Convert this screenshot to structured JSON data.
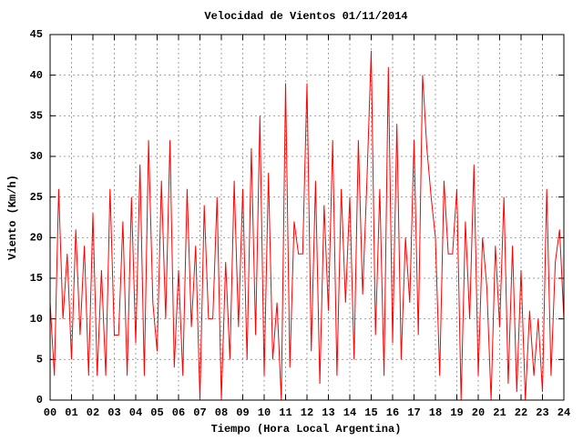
{
  "chart_data": {
    "type": "line",
    "title": "Velocidad de Vientos 01/11/2014",
    "xlabel": "Tiempo (Hora Local Argentina)",
    "ylabel": "Viento (Km/h)",
    "color": "#ff0000",
    "grid": true,
    "xlim": [
      0,
      24
    ],
    "ylim": [
      0,
      45
    ],
    "yticks": [
      0,
      5,
      10,
      15,
      20,
      25,
      30,
      35,
      40,
      45
    ],
    "xticks": [
      {
        "value": 0,
        "label": "00"
      },
      {
        "value": 1,
        "label": "01"
      },
      {
        "value": 2,
        "label": "02"
      },
      {
        "value": 3,
        "label": "03"
      },
      {
        "value": 4,
        "label": "04"
      },
      {
        "value": 5,
        "label": "05"
      },
      {
        "value": 6,
        "label": "06"
      },
      {
        "value": 7,
        "label": "07"
      },
      {
        "value": 8,
        "label": "08"
      },
      {
        "value": 9,
        "label": "09"
      },
      {
        "value": 10,
        "label": "10"
      },
      {
        "value": 11,
        "label": "11"
      },
      {
        "value": 12,
        "label": "12"
      },
      {
        "value": 13,
        "label": "13"
      },
      {
        "value": 14,
        "label": "14"
      },
      {
        "value": 15,
        "label": "15"
      },
      {
        "value": 16,
        "label": "16"
      },
      {
        "value": 17,
        "label": "17"
      },
      {
        "value": 18,
        "label": "18"
      },
      {
        "value": 19,
        "label": "19"
      },
      {
        "value": 20,
        "label": "20"
      },
      {
        "value": 21,
        "label": "21"
      },
      {
        "value": 22,
        "label": "22"
      },
      {
        "value": 23,
        "label": "23"
      },
      {
        "value": 24,
        "label": "24"
      }
    ],
    "x": [
      0,
      0.2,
      0.4,
      0.6,
      0.8,
      1,
      1.2,
      1.4,
      1.6,
      1.8,
      2,
      2.2,
      2.4,
      2.6,
      2.8,
      3,
      3.2,
      3.4,
      3.6,
      3.8,
      4,
      4.2,
      4.4,
      4.6,
      4.8,
      5,
      5.2,
      5.4,
      5.6,
      5.8,
      6,
      6.2,
      6.4,
      6.6,
      6.8,
      7,
      7.2,
      7.4,
      7.6,
      7.8,
      8,
      8.2,
      8.4,
      8.6,
      8.8,
      9,
      9.2,
      9.4,
      9.6,
      9.8,
      10,
      10.2,
      10.4,
      10.6,
      10.8,
      11,
      11.2,
      11.4,
      11.6,
      11.8,
      12,
      12.2,
      12.4,
      12.6,
      12.8,
      13,
      13.2,
      13.4,
      13.6,
      13.8,
      14,
      14.2,
      14.4,
      14.6,
      14.8,
      15,
      15.2,
      15.4,
      15.6,
      15.8,
      16,
      16.2,
      16.4,
      16.6,
      16.8,
      17,
      17.2,
      17.4,
      17.6,
      17.8,
      18,
      18.2,
      18.4,
      18.6,
      18.8,
      19,
      19.2,
      19.4,
      19.6,
      19.8,
      20,
      20.2,
      20.4,
      20.6,
      20.8,
      21,
      21.2,
      21.4,
      21.6,
      21.8,
      22,
      22.2,
      22.4,
      22.6,
      22.8,
      23,
      23.2,
      23.4,
      23.6,
      23.8,
      24
    ],
    "values": [
      12,
      3,
      26,
      10,
      18,
      5,
      21,
      8,
      19,
      3,
      23,
      3,
      16,
      3,
      26,
      8,
      8,
      22,
      3,
      25,
      7,
      29,
      3,
      32,
      12,
      6,
      27,
      10,
      32,
      4,
      16,
      3,
      26,
      9,
      19,
      0,
      24,
      10,
      10,
      25,
      0,
      17,
      5,
      27,
      9,
      26,
      5,
      31,
      8,
      35,
      3,
      28,
      5,
      12,
      0,
      39,
      4,
      22,
      18,
      18,
      39,
      6,
      27,
      2,
      24,
      11,
      32,
      3,
      26,
      12,
      25,
      5,
      32,
      13,
      27,
      43,
      8,
      26,
      3,
      41,
      7,
      34,
      5,
      20,
      12,
      32,
      8,
      40,
      31,
      25,
      20,
      3,
      27,
      18,
      18,
      26,
      0,
      22,
      10,
      29,
      3,
      20,
      14,
      0,
      19,
      9,
      25,
      2,
      19,
      1,
      16,
      0,
      11,
      3,
      10,
      1,
      26,
      3,
      17,
      21,
      10
    ]
  }
}
